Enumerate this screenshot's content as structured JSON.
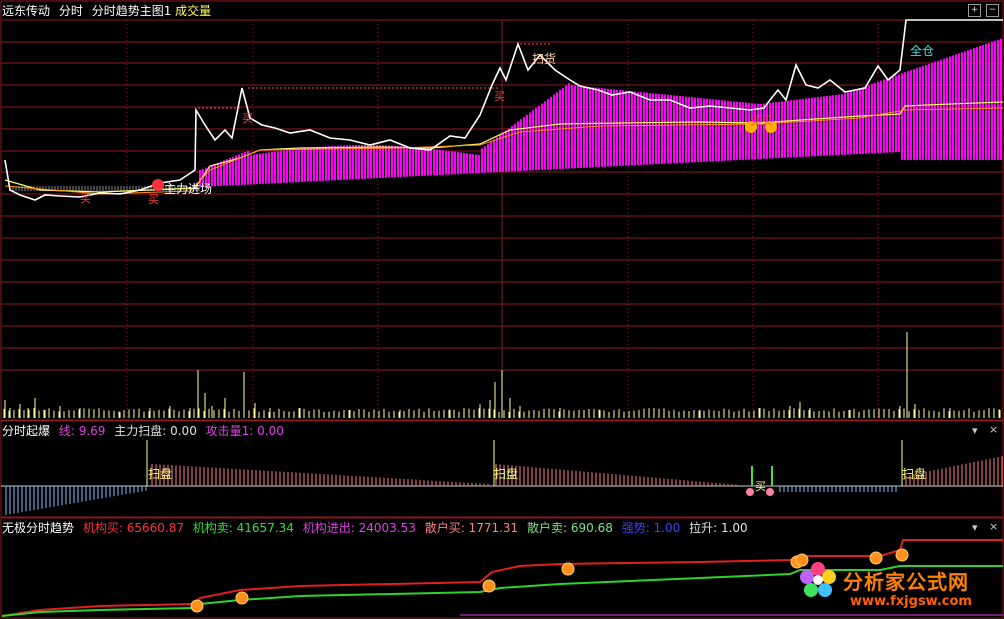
{
  "header": {
    "stock_name": "远东传动",
    "period": "分时",
    "indicator": "分时趋势主图1",
    "volume_label": "成交量"
  },
  "main_annotations": {
    "zhuli_jinchang": "主力进场",
    "mai": "买",
    "sao_huo": "扫货",
    "quan_cang": "全仓",
    "maimai": "买买"
  },
  "panel2": {
    "name": "分时起爆",
    "items": [
      {
        "label": "线: 9.69",
        "color": "#e040e0"
      },
      {
        "label": "主力扫盘: 0.00",
        "color": "#e0e0e0"
      },
      {
        "label": "攻击量1: 0.00",
        "color": "#e040e0"
      }
    ],
    "sao_pan": "扫盘",
    "mai": "买"
  },
  "panel3": {
    "name": "无极分时趋势",
    "items": [
      {
        "label": "机构买: 65660.87",
        "color": "#ff3030"
      },
      {
        "label": "机构卖: 41657.34",
        "color": "#30e030"
      },
      {
        "label": "机构进出: 24003.53",
        "color": "#e040e0"
      },
      {
        "label": "散户买: 1771.31",
        "color": "#ff8080"
      },
      {
        "label": "散户卖: 690.68",
        "color": "#80e080"
      },
      {
        "label": "强势: 1.00",
        "color": "#4040ff"
      },
      {
        "label": "拉升: 1.00",
        "color": "#e0e0e0"
      }
    ]
  },
  "watermark": {
    "name": "分析家公式网",
    "url": "www.fxjgsw.com"
  },
  "controls": {
    "plus": "+",
    "minus": "−",
    "dropdown": "▾",
    "close": "×"
  },
  "colors": {
    "grid": "#8a1a1a",
    "magenta": "#ff00ff",
    "price": "#ffffff",
    "avg": "#ffff60"
  }
}
